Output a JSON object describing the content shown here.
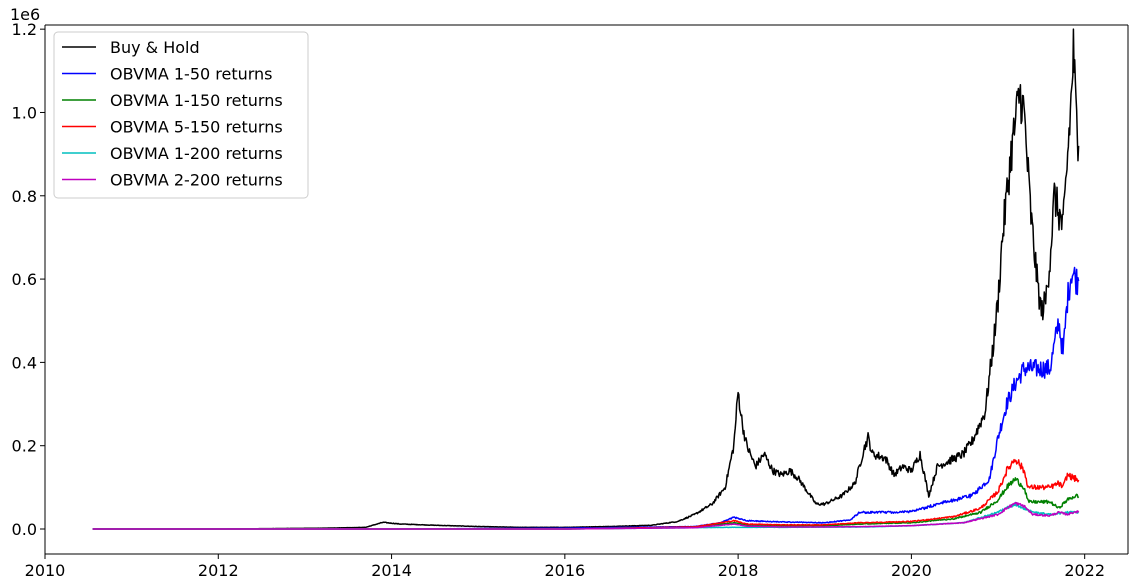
{
  "chart_data": {
    "type": "line",
    "title": "",
    "xlabel": "",
    "ylabel": "",
    "y_offset_label": "1e6",
    "xlim": [
      2010.0,
      2022.5
    ],
    "ylim": [
      -0.06,
      1.21
    ],
    "x_ticks": [
      2010,
      2012,
      2014,
      2016,
      2018,
      2020,
      2022
    ],
    "y_ticks": [
      0.0,
      0.2,
      0.4,
      0.6,
      0.8,
      1.0,
      1.2
    ],
    "x_tick_labels": [
      "2010",
      "2012",
      "2014",
      "2016",
      "2018",
      "2020",
      "2022"
    ],
    "y_tick_labels": [
      "0.0",
      "0.2",
      "0.4",
      "0.6",
      "0.8",
      "1.0",
      "1.2"
    ],
    "grid": false,
    "legend_position": "top-left",
    "series": [
      {
        "name": "Buy & Hold",
        "color": "#000000",
        "points": [
          [
            2010.55,
            0.0
          ],
          [
            2012.0,
            0.0
          ],
          [
            2013.2,
            0.002
          ],
          [
            2013.7,
            0.004
          ],
          [
            2013.9,
            0.016
          ],
          [
            2014.1,
            0.012
          ],
          [
            2014.5,
            0.009
          ],
          [
            2015.0,
            0.006
          ],
          [
            2015.5,
            0.004
          ],
          [
            2016.0,
            0.004
          ],
          [
            2016.5,
            0.006
          ],
          [
            2017.0,
            0.009
          ],
          [
            2017.3,
            0.018
          ],
          [
            2017.5,
            0.035
          ],
          [
            2017.7,
            0.06
          ],
          [
            2017.85,
            0.1
          ],
          [
            2017.95,
            0.2
          ],
          [
            2018.0,
            0.33
          ],
          [
            2018.05,
            0.25
          ],
          [
            2018.1,
            0.2
          ],
          [
            2018.2,
            0.15
          ],
          [
            2018.3,
            0.18
          ],
          [
            2018.4,
            0.14
          ],
          [
            2018.5,
            0.13
          ],
          [
            2018.6,
            0.14
          ],
          [
            2018.7,
            0.12
          ],
          [
            2018.9,
            0.06
          ],
          [
            2019.0,
            0.06
          ],
          [
            2019.2,
            0.08
          ],
          [
            2019.35,
            0.11
          ],
          [
            2019.45,
            0.19
          ],
          [
            2019.5,
            0.22
          ],
          [
            2019.55,
            0.18
          ],
          [
            2019.7,
            0.17
          ],
          [
            2019.8,
            0.13
          ],
          [
            2019.9,
            0.15
          ],
          [
            2020.0,
            0.14
          ],
          [
            2020.1,
            0.18
          ],
          [
            2020.2,
            0.08
          ],
          [
            2020.3,
            0.15
          ],
          [
            2020.5,
            0.17
          ],
          [
            2020.6,
            0.18
          ],
          [
            2020.7,
            0.21
          ],
          [
            2020.85,
            0.28
          ],
          [
            2020.95,
            0.45
          ],
          [
            2021.0,
            0.55
          ],
          [
            2021.05,
            0.7
          ],
          [
            2021.15,
            0.9
          ],
          [
            2021.25,
            1.05
          ],
          [
            2021.3,
            1.0
          ],
          [
            2021.38,
            0.75
          ],
          [
            2021.45,
            0.6
          ],
          [
            2021.5,
            0.52
          ],
          [
            2021.55,
            0.55
          ],
          [
            2021.6,
            0.65
          ],
          [
            2021.65,
            0.8
          ],
          [
            2021.75,
            0.72
          ],
          [
            2021.85,
            1.05
          ],
          [
            2021.87,
            1.15
          ],
          [
            2021.9,
            1.0
          ],
          [
            2021.93,
            0.92
          ]
        ]
      },
      {
        "name": "OBVMA 1-50 returns",
        "color": "#0000ff",
        "points": [
          [
            2010.55,
            0.0
          ],
          [
            2013.9,
            0.0
          ],
          [
            2016.0,
            0.002
          ],
          [
            2017.5,
            0.006
          ],
          [
            2017.8,
            0.015
          ],
          [
            2017.95,
            0.028
          ],
          [
            2018.1,
            0.02
          ],
          [
            2018.5,
            0.017
          ],
          [
            2019.0,
            0.015
          ],
          [
            2019.3,
            0.022
          ],
          [
            2019.4,
            0.04
          ],
          [
            2019.8,
            0.04
          ],
          [
            2020.0,
            0.042
          ],
          [
            2020.15,
            0.05
          ],
          [
            2020.3,
            0.06
          ],
          [
            2020.7,
            0.08
          ],
          [
            2020.9,
            0.12
          ],
          [
            2021.0,
            0.22
          ],
          [
            2021.1,
            0.3
          ],
          [
            2021.2,
            0.35
          ],
          [
            2021.3,
            0.385
          ],
          [
            2021.6,
            0.385
          ],
          [
            2021.65,
            0.44
          ],
          [
            2021.7,
            0.5
          ],
          [
            2021.75,
            0.42
          ],
          [
            2021.8,
            0.55
          ],
          [
            2021.85,
            0.62
          ],
          [
            2021.9,
            0.6
          ],
          [
            2021.93,
            0.595
          ]
        ]
      },
      {
        "name": "OBVMA 1-150 returns",
        "color": "#008000",
        "points": [
          [
            2010.55,
            0.0
          ],
          [
            2016.0,
            0.0
          ],
          [
            2017.5,
            0.004
          ],
          [
            2017.95,
            0.015
          ],
          [
            2018.1,
            0.01
          ],
          [
            2018.5,
            0.008
          ],
          [
            2019.0,
            0.008
          ],
          [
            2019.4,
            0.012
          ],
          [
            2020.0,
            0.015
          ],
          [
            2020.5,
            0.025
          ],
          [
            2020.8,
            0.04
          ],
          [
            2021.0,
            0.07
          ],
          [
            2021.1,
            0.1
          ],
          [
            2021.2,
            0.12
          ],
          [
            2021.3,
            0.1
          ],
          [
            2021.35,
            0.065
          ],
          [
            2021.6,
            0.065
          ],
          [
            2021.7,
            0.05
          ],
          [
            2021.8,
            0.07
          ],
          [
            2021.9,
            0.08
          ],
          [
            2021.93,
            0.078
          ]
        ]
      },
      {
        "name": "OBVMA 5-150 returns",
        "color": "#ff0000",
        "points": [
          [
            2010.55,
            0.0
          ],
          [
            2016.0,
            0.0
          ],
          [
            2017.5,
            0.005
          ],
          [
            2017.95,
            0.02
          ],
          [
            2018.1,
            0.012
          ],
          [
            2018.5,
            0.01
          ],
          [
            2019.0,
            0.01
          ],
          [
            2019.4,
            0.015
          ],
          [
            2020.0,
            0.018
          ],
          [
            2020.5,
            0.03
          ],
          [
            2020.8,
            0.05
          ],
          [
            2021.0,
            0.09
          ],
          [
            2021.1,
            0.14
          ],
          [
            2021.2,
            0.17
          ],
          [
            2021.3,
            0.14
          ],
          [
            2021.35,
            0.1
          ],
          [
            2021.6,
            0.1
          ],
          [
            2021.7,
            0.11
          ],
          [
            2021.75,
            0.1
          ],
          [
            2021.8,
            0.13
          ],
          [
            2021.9,
            0.12
          ],
          [
            2021.93,
            0.118
          ]
        ]
      },
      {
        "name": "OBVMA 1-200 returns",
        "color": "#00bfbf",
        "points": [
          [
            2010.55,
            0.0
          ],
          [
            2016.0,
            0.0
          ],
          [
            2017.9,
            0.004
          ],
          [
            2018.5,
            0.004
          ],
          [
            2019.5,
            0.005
          ],
          [
            2020.0,
            0.008
          ],
          [
            2020.6,
            0.015
          ],
          [
            2021.0,
            0.04
          ],
          [
            2021.2,
            0.06
          ],
          [
            2021.4,
            0.04
          ],
          [
            2021.6,
            0.035
          ],
          [
            2021.8,
            0.04
          ],
          [
            2021.93,
            0.04
          ]
        ]
      },
      {
        "name": "OBVMA 2-200 returns",
        "color": "#bf00bf",
        "points": [
          [
            2010.55,
            0.0
          ],
          [
            2016.0,
            0.0
          ],
          [
            2017.5,
            0.003
          ],
          [
            2017.95,
            0.012
          ],
          [
            2018.1,
            0.007
          ],
          [
            2018.5,
            0.005
          ],
          [
            2019.0,
            0.005
          ],
          [
            2019.5,
            0.006
          ],
          [
            2020.0,
            0.008
          ],
          [
            2020.6,
            0.015
          ],
          [
            2021.0,
            0.035
          ],
          [
            2021.1,
            0.05
          ],
          [
            2021.2,
            0.062
          ],
          [
            2021.3,
            0.055
          ],
          [
            2021.4,
            0.035
          ],
          [
            2021.6,
            0.032
          ],
          [
            2021.7,
            0.04
          ],
          [
            2021.8,
            0.035
          ],
          [
            2021.9,
            0.042
          ],
          [
            2021.93,
            0.04
          ]
        ]
      }
    ]
  }
}
